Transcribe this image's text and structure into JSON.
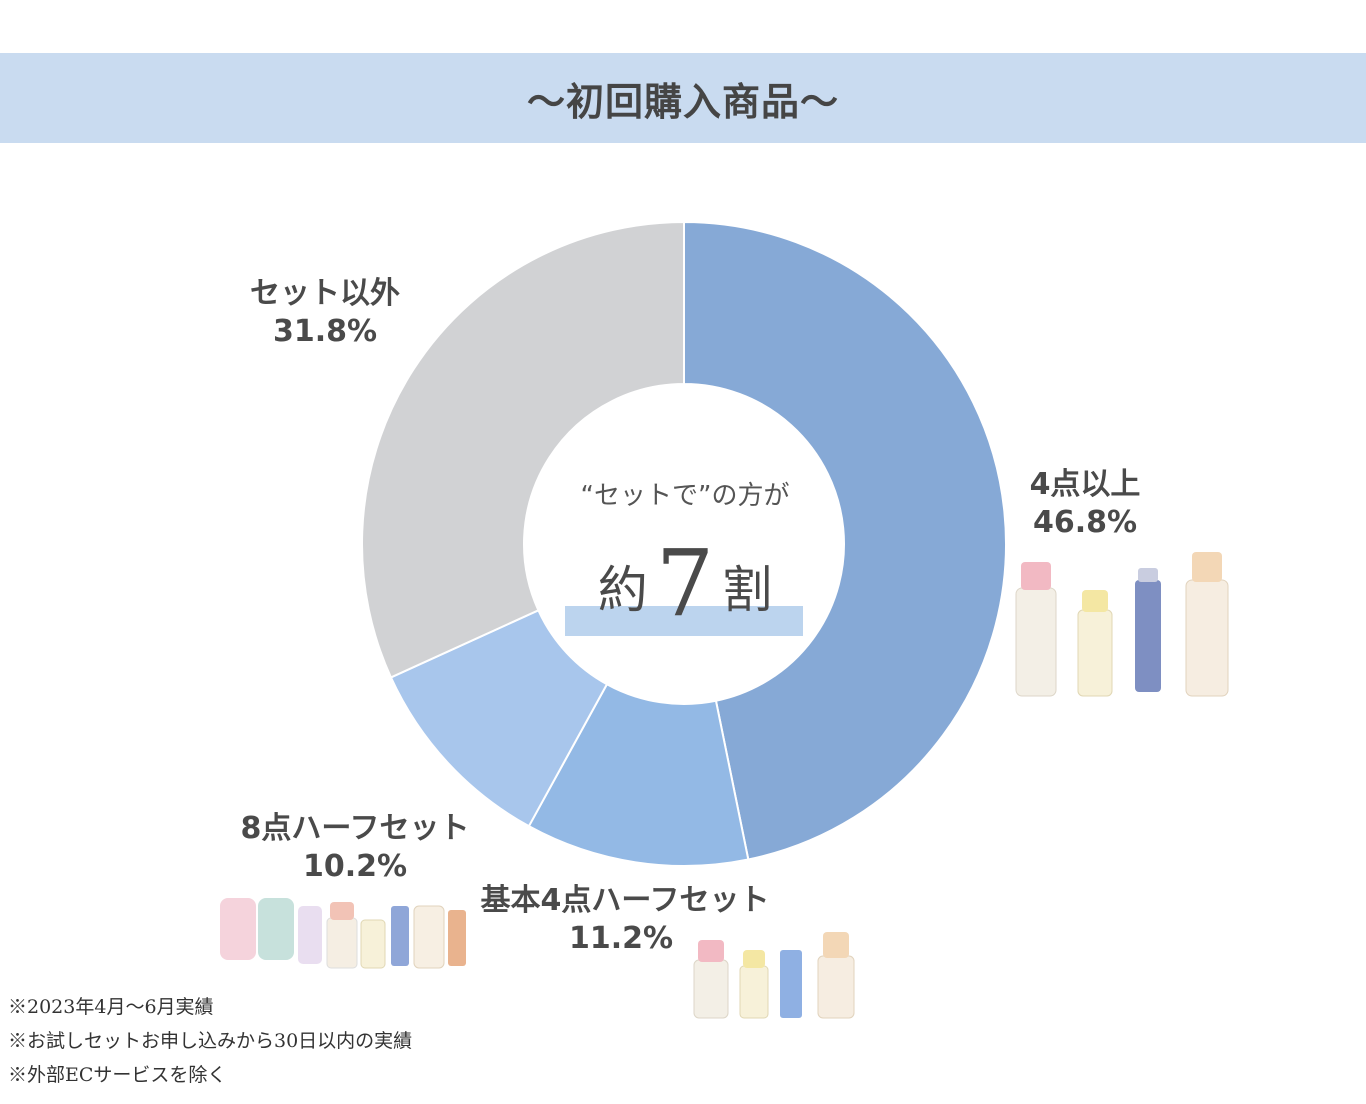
{
  "title": "～初回購入商品～",
  "center": {
    "caption": "“セットで”の方が",
    "prefix": "約",
    "number": "7",
    "suffix": "割"
  },
  "notes": [
    "※2023年4月～6月実績",
    "※お試しセットお申し込みから30日以内の実績",
    "※外部ECサービスを除く"
  ],
  "chart_data": {
    "type": "pie",
    "title": "～初回購入商品～",
    "slices": [
      {
        "label": "4点以上",
        "value": 46.8,
        "value_label": "46.8%",
        "color": "#86a9d6"
      },
      {
        "label": "基本4点ハーフセット",
        "value": 11.2,
        "value_label": "11.2%",
        "color": "#93b9e5"
      },
      {
        "label": "8点ハーフセット",
        "value": 10.2,
        "value_label": "10.2%",
        "color": "#a8c6ec"
      },
      {
        "label": "セット以外",
        "value": 31.8,
        "value_label": "31.8%",
        "color": "#d1d2d4"
      }
    ],
    "start": "12 o'clock",
    "direction": "clockwise",
    "donut": true
  },
  "colors": {
    "title_band": "#c9dbf0",
    "highlight": "#bcd4ee",
    "text": "#4a4a4a"
  }
}
